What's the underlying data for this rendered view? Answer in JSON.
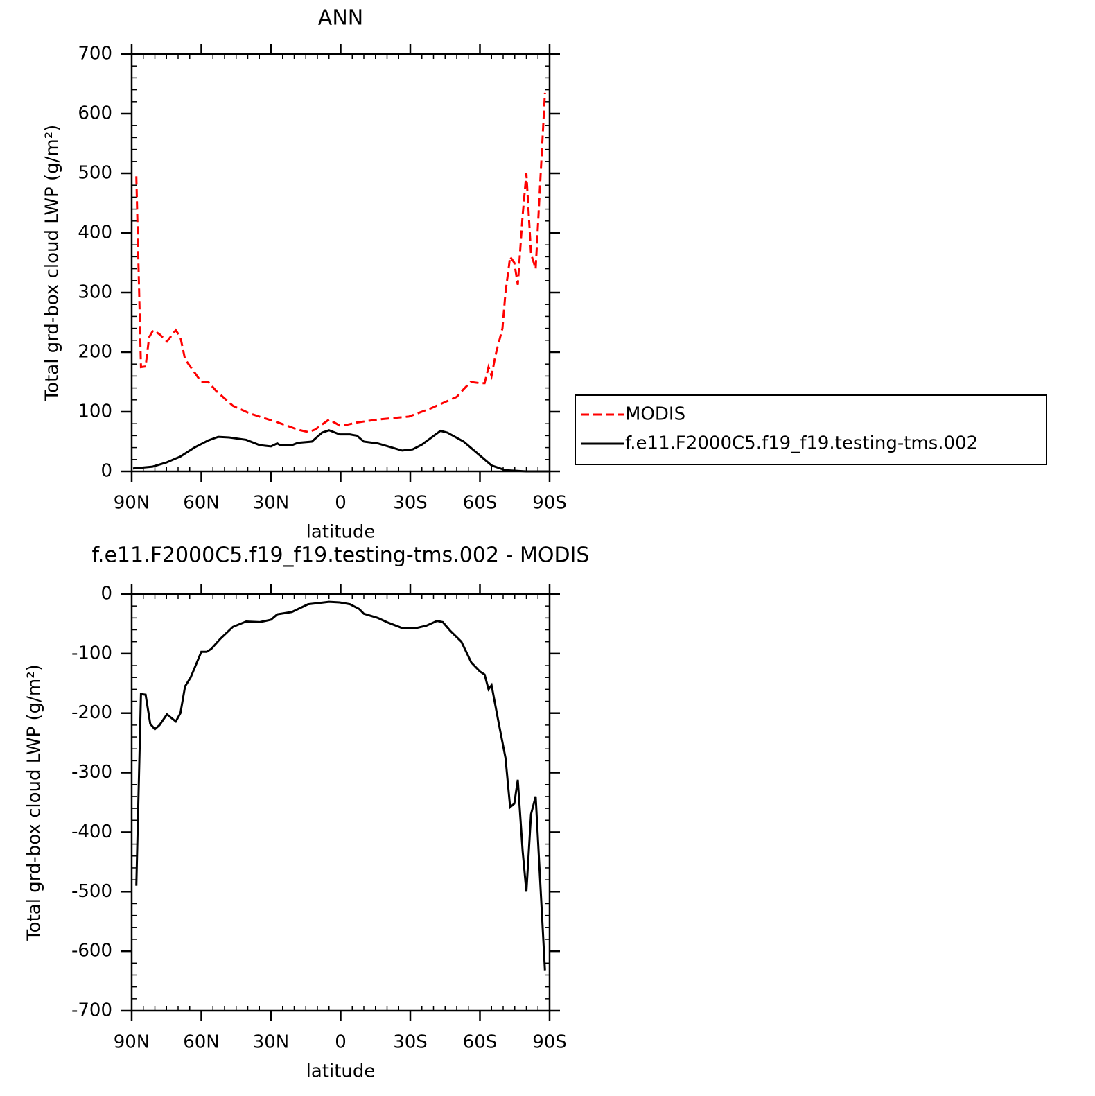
{
  "chart_data": [
    {
      "type": "line",
      "title": "ANN",
      "x_label": "latitude",
      "y_label": "Total grd-box cloud LWP (g/m²)",
      "xlim": [
        90,
        -90
      ],
      "xticks": [
        {
          "value": 90,
          "label": "90N"
        },
        {
          "value": 60,
          "label": "60N"
        },
        {
          "value": 30,
          "label": "30N"
        },
        0,
        {
          "value": -30,
          "label": "30S"
        },
        {
          "value": -60,
          "label": "60S"
        },
        {
          "value": -90,
          "label": "90S"
        }
      ],
      "xminorticks": [
        85,
        80,
        75,
        70,
        65,
        55,
        50,
        45,
        40,
        35,
        25,
        20,
        15,
        10,
        5,
        -5,
        -10,
        -15,
        -20,
        -25,
        -35,
        -40,
        -45,
        -50,
        -55,
        -65,
        -70,
        -75,
        -80,
        -85
      ],
      "ylim": [
        0,
        700
      ],
      "yticks": [
        0,
        100,
        200,
        300,
        400,
        500,
        600,
        700
      ],
      "yminorticks": [
        20,
        40,
        60,
        80,
        120,
        140,
        160,
        180,
        220,
        240,
        260,
        280,
        320,
        340,
        360,
        380,
        420,
        440,
        460,
        480,
        520,
        540,
        560,
        580,
        620,
        640,
        660,
        680
      ],
      "legend": "right",
      "series": [
        {
          "name": "MODIS",
          "color": "#ff0000",
          "dashed": true,
          "x": [
            88,
            86,
            84,
            82.5,
            80.7,
            78,
            74.8,
            71,
            69,
            67,
            64.6,
            60,
            57,
            53.6,
            46.4,
            39,
            27,
            18.4,
            14,
            11,
            5,
            0.4,
            -2.5,
            -7,
            -16,
            -29.4,
            -38.4,
            -50,
            -53,
            -56,
            -60,
            -62,
            -63.7,
            -65,
            -66.7,
            -69.7,
            -71,
            -73,
            -74.8,
            -76.3,
            -78.4,
            -80,
            -82,
            -84,
            -88
          ],
          "values": [
            495,
            175,
            176,
            225,
            237,
            230,
            218,
            237,
            225,
            188,
            175,
            150,
            150,
            135,
            110,
            97,
            82,
            70,
            66,
            70,
            87,
            77,
            78,
            82,
            87,
            92,
            105,
            125,
            138,
            150,
            148,
            148,
            175,
            160,
            195,
            240,
            300,
            360,
            350,
            313,
            430,
            500,
            365,
            340,
            635
          ]
        },
        {
          "name": "f.e11.F2000C5.f19_f19.testing-tms.002",
          "color": "#000000",
          "dashed": false,
          "x": [
            89.4,
            81,
            75,
            69,
            63,
            57,
            52.7,
            48,
            40.7,
            34.8,
            30,
            27.3,
            26,
            21,
            18.4,
            12.4,
            8,
            5,
            0.4,
            -4,
            -7,
            -10,
            -16,
            -20.5,
            -26.5,
            -31,
            -35,
            -43,
            -46,
            -53,
            -59,
            -65,
            -71,
            -80,
            -89.6
          ],
          "values": [
            5,
            8,
            15,
            25,
            40,
            52,
            58,
            57,
            53,
            44,
            42,
            47,
            44,
            44,
            48,
            50,
            65,
            69,
            62,
            62,
            60,
            50,
            47,
            42,
            35,
            37,
            45,
            68,
            65,
            50,
            30,
            10,
            2,
            0,
            0
          ]
        }
      ]
    },
    {
      "type": "line",
      "title": "f.e11.F2000C5.f19_f19.testing-tms.002 - MODIS",
      "x_label": "latitude",
      "y_label": "Total grd-box cloud LWP (g/m²)",
      "xlim": [
        90,
        -90
      ],
      "xticks": [
        {
          "value": 90,
          "label": "90N"
        },
        {
          "value": 60,
          "label": "60N"
        },
        {
          "value": 30,
          "label": "30N"
        },
        0,
        {
          "value": -30,
          "label": "30S"
        },
        {
          "value": -60,
          "label": "60S"
        },
        {
          "value": -90,
          "label": "90S"
        }
      ],
      "xminorticks": [
        85,
        80,
        75,
        70,
        65,
        55,
        50,
        45,
        40,
        35,
        25,
        20,
        15,
        10,
        5,
        -5,
        -10,
        -15,
        -20,
        -25,
        -35,
        -40,
        -45,
        -50,
        -55,
        -65,
        -70,
        -75,
        -80,
        -85
      ],
      "ylim": [
        -700,
        0
      ],
      "yticks": [
        -700,
        -600,
        -500,
        -400,
        -300,
        -200,
        -100,
        0
      ],
      "yminorticks": [
        -680,
        -660,
        -640,
        -620,
        -580,
        -560,
        -540,
        -520,
        -480,
        -460,
        -440,
        -420,
        -380,
        -360,
        -340,
        -320,
        -280,
        -260,
        -240,
        -220,
        -180,
        -160,
        -140,
        -120,
        -80,
        -60,
        -40,
        -20
      ],
      "series": [
        {
          "color": "#000000",
          "dashed": false,
          "x": [
            88,
            86,
            84,
            82,
            80,
            78,
            74.8,
            71,
            69,
            67,
            64.6,
            60,
            57.7,
            55.7,
            51.8,
            46.4,
            40.7,
            34.8,
            30,
            27.3,
            21,
            14,
            9.4,
            5,
            0.4,
            -4,
            -8,
            -10,
            -16,
            -20.5,
            -26.5,
            -32.5,
            -37,
            -41.5,
            -44,
            -47.3,
            -52,
            -56.3,
            -60,
            -62,
            -63.7,
            -65,
            -68,
            -71,
            -73,
            -74.8,
            -76.3,
            -78.4,
            -80,
            -82,
            -84,
            -88
          ],
          "values": [
            -490,
            -168,
            -169,
            -218,
            -227,
            -220,
            -202,
            -214,
            -200,
            -155,
            -140,
            -97,
            -97,
            -92,
            -75,
            -55,
            -46,
            -47,
            -43,
            -34,
            -30,
            -17,
            -15,
            -13,
            -14,
            -17,
            -25,
            -33,
            -40,
            -48,
            -57,
            -57,
            -53,
            -45,
            -47,
            -62,
            -80,
            -115,
            -130,
            -135,
            -160,
            -153,
            -215,
            -275,
            -358,
            -352,
            -312,
            -432,
            -500,
            -370,
            -340,
            -632
          ]
        }
      ]
    }
  ]
}
